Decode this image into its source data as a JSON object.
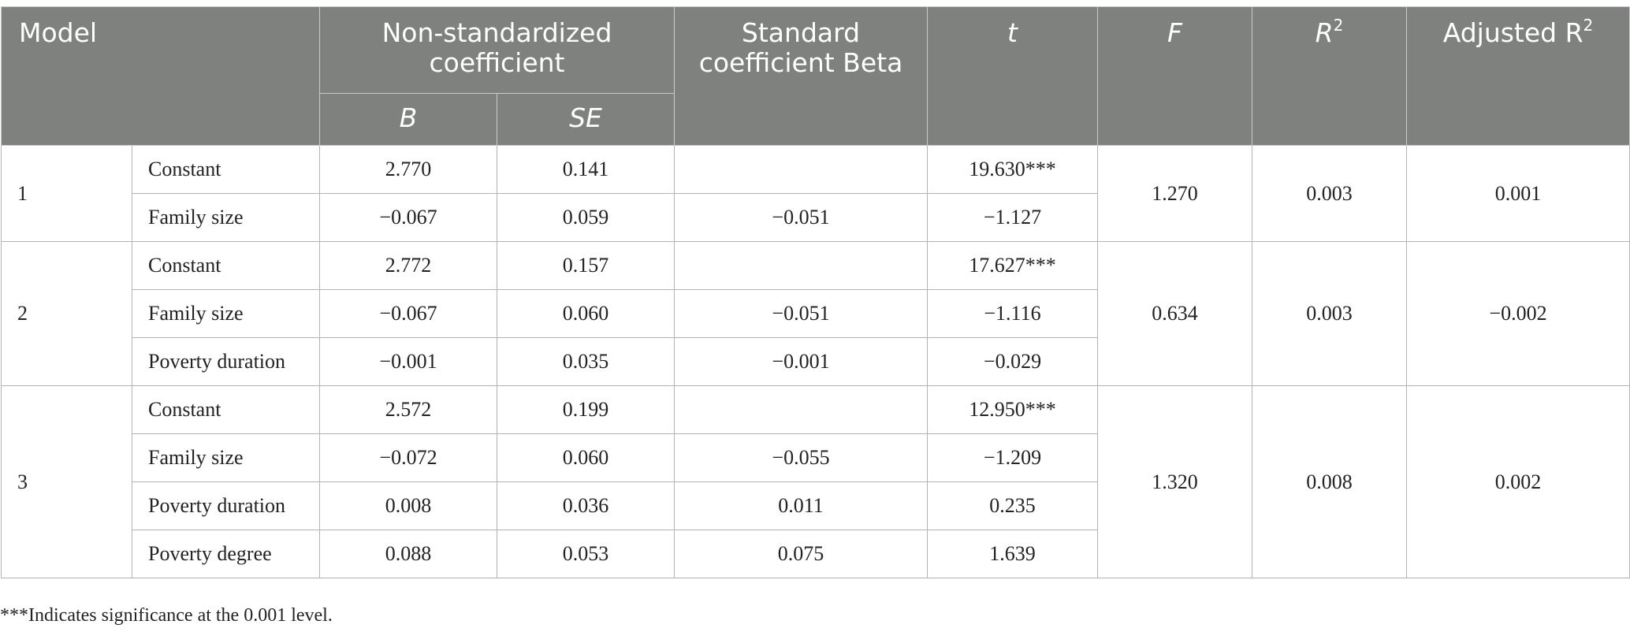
{
  "headers": {
    "model": "Model",
    "nonstd": "Non-standardized coefficient",
    "b": "B",
    "se": "SE",
    "beta": "Standard coefficient Beta",
    "t": "t",
    "f": "F",
    "r2_base": "R",
    "r2_sup": "2",
    "adj_base": "Adjusted R",
    "adj_sup": "2"
  },
  "models": [
    {
      "id": "1",
      "f": "1.270",
      "r2": "0.003",
      "adj_r2": "0.001",
      "rows": [
        {
          "predictor": "Constant",
          "b": "2.770",
          "se": "0.141",
          "beta": "",
          "t": "19.630***"
        },
        {
          "predictor": "Family size",
          "b": "−0.067",
          "se": "0.059",
          "beta": "−0.051",
          "t": "−1.127"
        }
      ]
    },
    {
      "id": "2",
      "f": "0.634",
      "r2": "0.003",
      "adj_r2": "−0.002",
      "rows": [
        {
          "predictor": "Constant",
          "b": "2.772",
          "se": "0.157",
          "beta": "",
          "t": "17.627***"
        },
        {
          "predictor": "Family size",
          "b": "−0.067",
          "se": "0.060",
          "beta": "−0.051",
          "t": "−1.116"
        },
        {
          "predictor": "Poverty duration",
          "b": "−0.001",
          "se": "0.035",
          "beta": "−0.001",
          "t": "−0.029"
        }
      ]
    },
    {
      "id": "3",
      "f": "1.320",
      "r2": "0.008",
      "adj_r2": "0.002",
      "rows": [
        {
          "predictor": "Constant",
          "b": "2.572",
          "se": "0.199",
          "beta": "",
          "t": "12.950***"
        },
        {
          "predictor": "Family size",
          "b": "−0.072",
          "se": "0.060",
          "beta": "−0.055",
          "t": "−1.209"
        },
        {
          "predictor": "Poverty duration",
          "b": "0.008",
          "se": "0.036",
          "beta": "0.011",
          "t": "0.235"
        },
        {
          "predictor": "Poverty degree",
          "b": "0.088",
          "se": "0.053",
          "beta": "0.075",
          "t": "1.639"
        }
      ]
    }
  ],
  "footnote": "***Indicates significance at the 0.001 level."
}
